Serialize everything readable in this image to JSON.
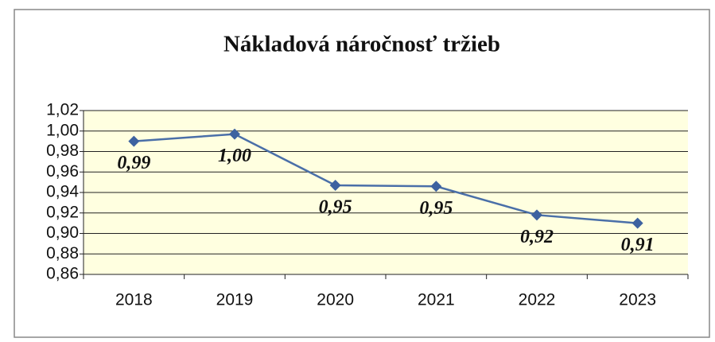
{
  "chart_data": {
    "type": "line",
    "title": "Nákladová náročnosť tržieb",
    "categories": [
      "2018",
      "2019",
      "2020",
      "2021",
      "2022",
      "2023"
    ],
    "values": [
      0.99,
      0.997,
      0.947,
      0.946,
      0.918,
      0.91
    ],
    "value_labels": [
      "0,99",
      "1,00",
      "0,95",
      "0,95",
      "0,92",
      "0,91"
    ],
    "color": "#4a6fa8",
    "ylim": [
      0.86,
      1.02
    ],
    "yticks": [
      {
        "value": 0.86,
        "label": "0,86"
      },
      {
        "value": 0.88,
        "label": "0,88"
      },
      {
        "value": 0.9,
        "label": "0,90"
      },
      {
        "value": 0.92,
        "label": "0,92"
      },
      {
        "value": 0.94,
        "label": "0,94"
      },
      {
        "value": 0.96,
        "label": "0,96"
      },
      {
        "value": 0.98,
        "label": "0,98"
      },
      {
        "value": 1.0,
        "label": "1,00"
      },
      {
        "value": 1.02,
        "label": "1,02"
      }
    ],
    "grid": true
  }
}
